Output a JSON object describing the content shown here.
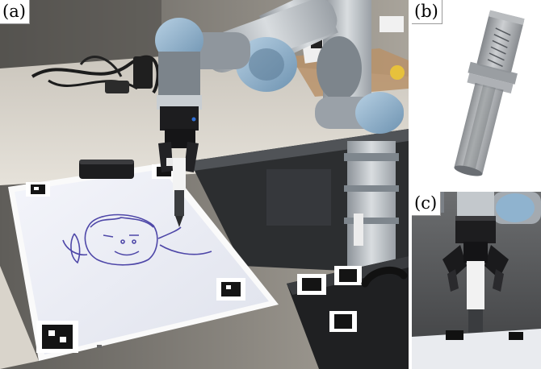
{
  "figure": {
    "panels": [
      {
        "label": "(a)",
        "content": "robot-arm-drawing-scene"
      },
      {
        "label": "(b)",
        "content": "pen-holder-3d-render"
      },
      {
        "label": "(c)",
        "content": "gripper-holding-pen"
      }
    ]
  },
  "colors": {
    "background": "#ffffff",
    "arm_silver": "#b9bec3",
    "joint_blue": "#8fb3cf",
    "gripper_black": "#1d1d1f",
    "whiteboard": "#eef0f7",
    "ink": "#4e47a8",
    "render_grey": "#8d9196"
  },
  "icons": [
    "panel-frame"
  ]
}
